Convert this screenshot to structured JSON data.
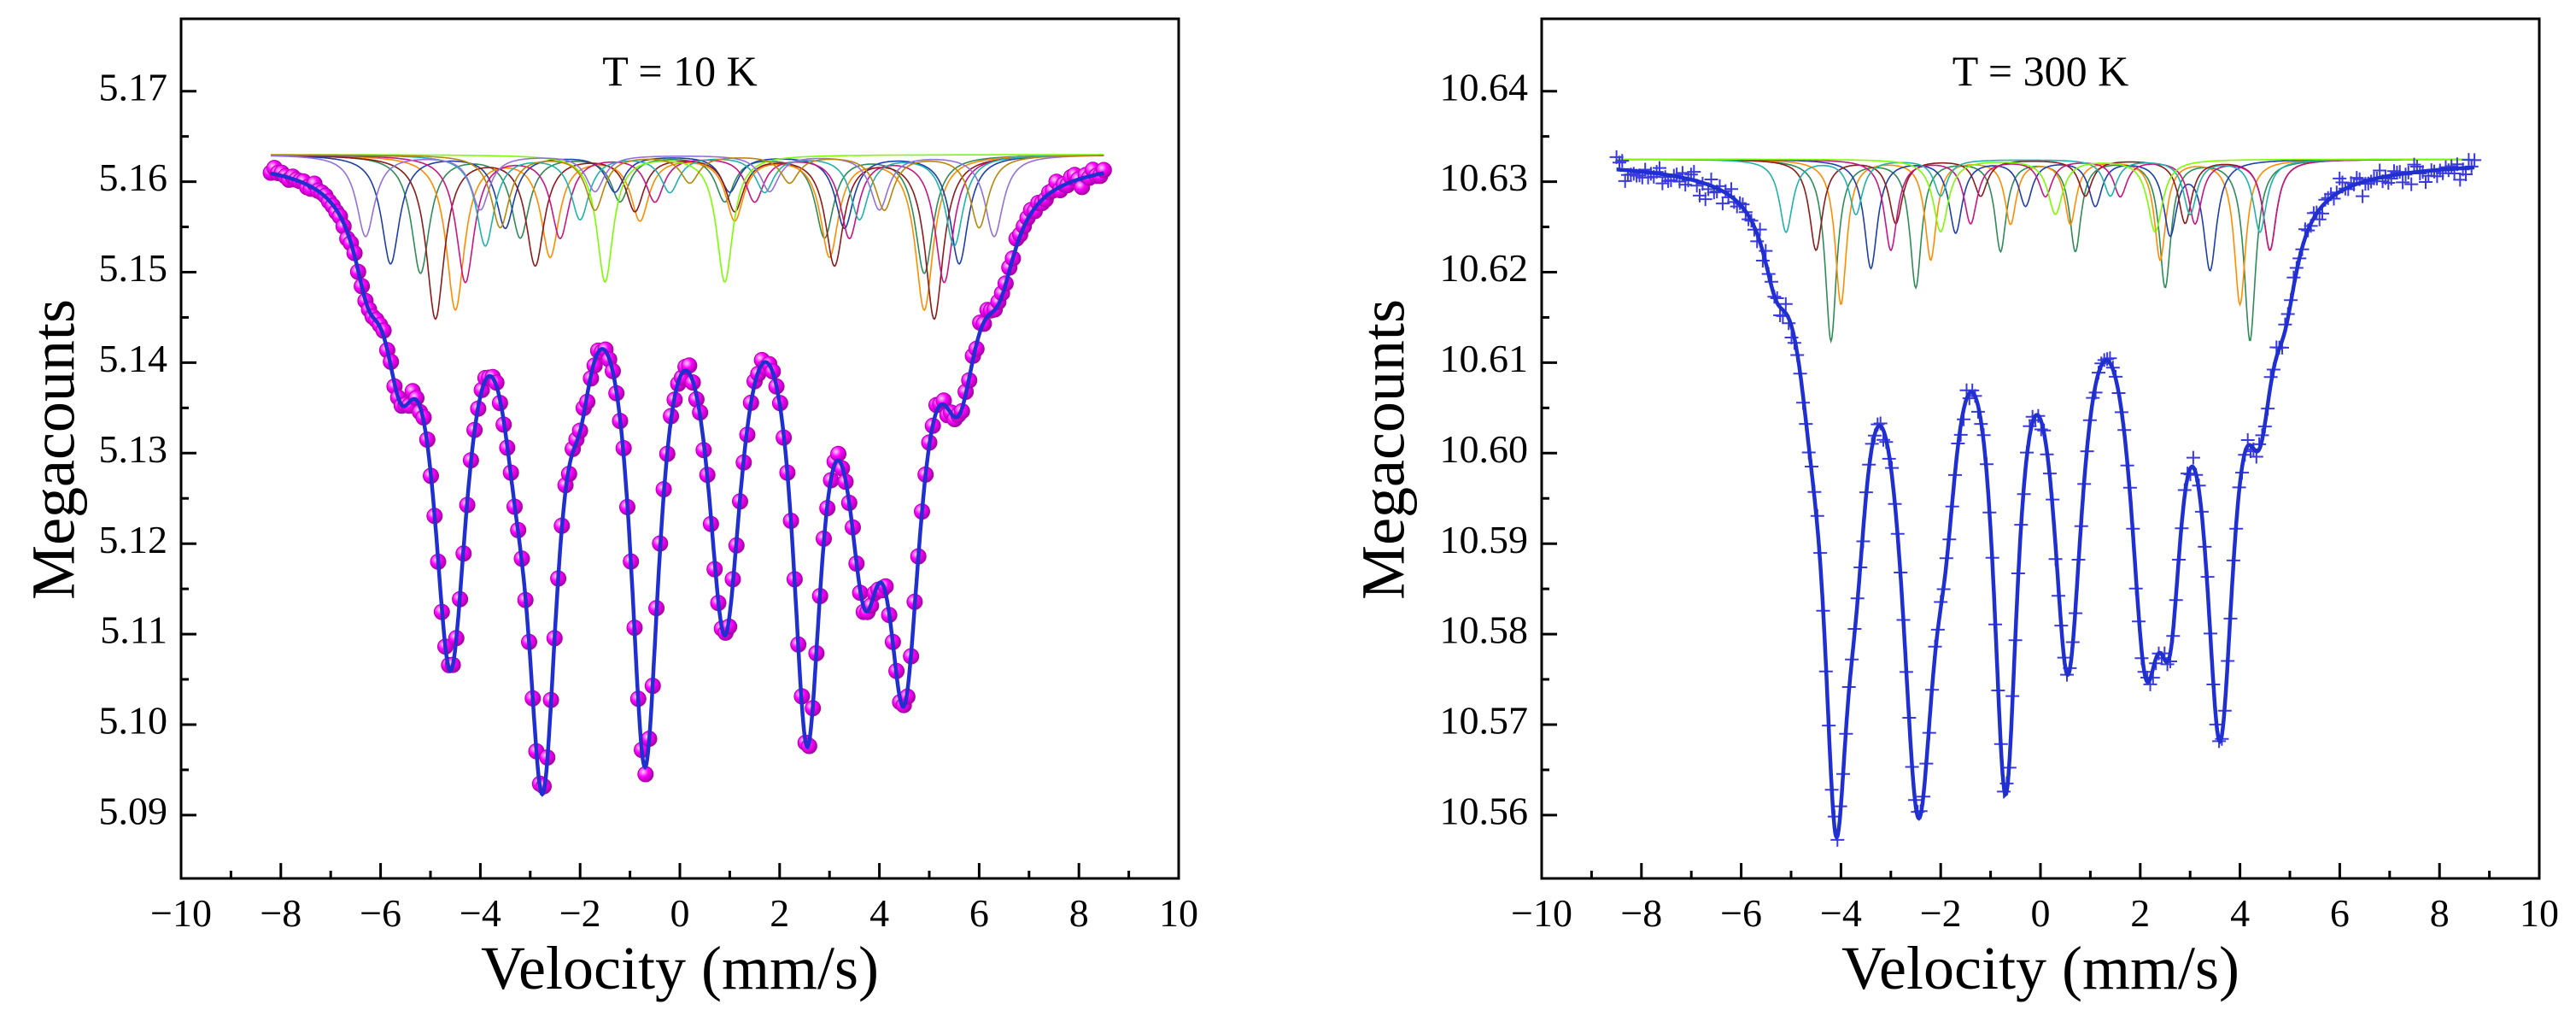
{
  "colors": {
    "fit_line": "#1f2fd0",
    "marker_10K": "#ff00ff",
    "marker_300K": "#3a3ae0",
    "subspectra": [
      "#2e8b57",
      "#ff8c00",
      "#1e3ea8",
      "#8b1a1a",
      "#c71585",
      "#20b2aa",
      "#7cfc00",
      "#9370db",
      "#b8860b",
      "#4682b4"
    ]
  },
  "chart_data": [
    {
      "type": "scatter",
      "title": "T = 10 K",
      "xlabel": "Velocity (mm/s)",
      "ylabel": "Megacounts",
      "xlim": [
        -10,
        10
      ],
      "ylim": [
        5.083,
        5.178
      ],
      "xticks": [
        -10,
        -8,
        -6,
        -4,
        -2,
        0,
        2,
        4,
        6,
        8,
        10
      ],
      "xtick_labels": [
        "−10",
        "−8",
        "−6",
        "−4",
        "−2",
        "0",
        "2",
        "4",
        "6",
        "8",
        "10"
      ],
      "yticks": [
        5.09,
        5.1,
        5.11,
        5.12,
        5.13,
        5.14,
        5.15,
        5.16,
        5.17
      ],
      "ytick_labels": [
        "5.09",
        "5.10",
        "5.11",
        "5.12",
        "5.13",
        "5.14",
        "5.15",
        "5.16",
        "5.17"
      ],
      "marker": "sphere",
      "baseline": 5.163,
      "x_range": [
        -8.2,
        8.5
      ],
      "dips": [
        {
          "x": -6.25,
          "depth": 0.008,
          "width": 0.35
        },
        {
          "x": -5.6,
          "depth": 0.016,
          "width": 0.4
        },
        {
          "x": -4.6,
          "depth": 0.05,
          "width": 0.42
        },
        {
          "x": -3.3,
          "depth": 0.012,
          "width": 0.35
        },
        {
          "x": -2.75,
          "depth": 0.06,
          "width": 0.38
        },
        {
          "x": -2.0,
          "depth": 0.01,
          "width": 0.3
        },
        {
          "x": -0.7,
          "depth": 0.06,
          "width": 0.36
        },
        {
          "x": 0.9,
          "depth": 0.045,
          "width": 0.42
        },
        {
          "x": 2.55,
          "depth": 0.055,
          "width": 0.36
        },
        {
          "x": 3.7,
          "depth": 0.032,
          "width": 0.42
        },
        {
          "x": 4.5,
          "depth": 0.048,
          "width": 0.42
        },
        {
          "x": 5.6,
          "depth": 0.018,
          "width": 0.45
        },
        {
          "x": 6.4,
          "depth": 0.008,
          "width": 0.4
        }
      ],
      "subspectra": [
        {
          "lines": [
            -5.2,
            -3.2,
            -1.2,
            0.9,
            2.9,
            4.9
          ],
          "depths": [
            0.013,
            0.009,
            0.005,
            0.005,
            0.009,
            0.013
          ],
          "width": 0.22
        },
        {
          "lines": [
            -4.5,
            -2.6,
            -0.8,
            1.1,
            3.0,
            4.9
          ],
          "depths": [
            0.017,
            0.011,
            0.007,
            0.007,
            0.011,
            0.017
          ],
          "width": 0.22
        },
        {
          "lines": [
            -5.8,
            -3.5,
            -1.3,
            1.0,
            3.3,
            5.6
          ],
          "depths": [
            0.012,
            0.008,
            0.004,
            0.004,
            0.008,
            0.012
          ],
          "width": 0.22
        },
        {
          "lines": [
            -4.9,
            -2.9,
            -0.9,
            1.1,
            3.1,
            5.1
          ],
          "depths": [
            0.018,
            0.012,
            0.006,
            0.006,
            0.012,
            0.018
          ],
          "width": 0.22
        },
        {
          "lines": [
            -4.3,
            -2.4,
            -0.5,
            1.5,
            3.4,
            5.3
          ],
          "depths": [
            0.014,
            0.009,
            0.005,
            0.005,
            0.009,
            0.014
          ],
          "width": 0.22
        },
        {
          "lines": [
            -3.9,
            -2.0,
            -0.2,
            1.7,
            3.6,
            5.5
          ],
          "depths": [
            0.01,
            0.007,
            0.004,
            0.004,
            0.007,
            0.01
          ],
          "width": 0.22
        },
        {
          "lines": [
            -1.5,
            0.9
          ],
          "depths": [
            0.014,
            0.014
          ],
          "width": 0.2
        },
        {
          "lines": [
            -6.3,
            -4.0,
            -1.7,
            1.8,
            4.0,
            6.3
          ],
          "depths": [
            0.009,
            0.006,
            0.004,
            0.004,
            0.006,
            0.009
          ],
          "width": 0.22
        },
        {
          "lines": [
            -3.6,
            -1.7,
            0.2,
            2.2,
            4.1,
            6.0
          ],
          "depths": [
            0.008,
            0.006,
            0.003,
            0.003,
            0.006,
            0.008
          ],
          "width": 0.22
        }
      ]
    },
    {
      "type": "scatter",
      "title": "T = 300 K",
      "xlabel": "Velocity (mm/s)",
      "ylabel": "Megacounts",
      "xlim": [
        -10,
        10
      ],
      "ylim": [
        10.553,
        10.648
      ],
      "xticks": [
        -10,
        -8,
        -6,
        -4,
        -2,
        0,
        2,
        4,
        6,
        8,
        10
      ],
      "xtick_labels": [
        "−10",
        "−8",
        "−6",
        "−4",
        "−2",
        "0",
        "2",
        "4",
        "6",
        "8",
        "10"
      ],
      "yticks": [
        10.56,
        10.57,
        10.58,
        10.59,
        10.6,
        10.61,
        10.62,
        10.63,
        10.64
      ],
      "ytick_labels": [
        "10.56",
        "10.57",
        "10.58",
        "10.59",
        "10.60",
        "10.61",
        "10.62",
        "10.63",
        "10.64"
      ],
      "marker": "plus",
      "baseline": 10.6325,
      "x_range": [
        -8.5,
        8.7
      ],
      "dips": [
        {
          "x": -5.3,
          "depth": 0.007,
          "width": 0.32
        },
        {
          "x": -4.6,
          "depth": 0.012,
          "width": 0.35
        },
        {
          "x": -4.1,
          "depth": 0.058,
          "width": 0.3
        },
        {
          "x": -3.7,
          "depth": 0.02,
          "width": 0.3
        },
        {
          "x": -2.45,
          "depth": 0.063,
          "width": 0.42
        },
        {
          "x": -1.9,
          "depth": 0.015,
          "width": 0.3
        },
        {
          "x": -0.7,
          "depth": 0.06,
          "width": 0.3
        },
        {
          "x": 0.55,
          "depth": 0.048,
          "width": 0.36
        },
        {
          "x": 2.1,
          "depth": 0.042,
          "width": 0.38
        },
        {
          "x": 2.6,
          "depth": 0.03,
          "width": 0.3
        },
        {
          "x": 3.6,
          "depth": 0.055,
          "width": 0.35
        },
        {
          "x": 4.4,
          "depth": 0.018,
          "width": 0.32
        },
        {
          "x": 4.9,
          "depth": 0.008,
          "width": 0.3
        }
      ],
      "subspectra": [
        {
          "lines": [
            -4.2,
            -2.5,
            -0.8,
            0.7,
            2.5,
            4.2
          ],
          "depths": [
            0.02,
            0.014,
            0.01,
            0.01,
            0.014,
            0.02
          ],
          "width": 0.14
        },
        {
          "lines": [
            -4.0,
            -2.2,
            -0.6,
            0.6,
            2.4,
            4.0
          ],
          "depths": [
            0.016,
            0.011,
            0.007,
            0.007,
            0.011,
            0.016
          ],
          "width": 0.14
        },
        {
          "lines": [
            -3.4,
            -1.7,
            -0.3,
            1.1,
            2.6,
            3.4
          ],
          "depths": [
            0.012,
            0.008,
            0.005,
            0.005,
            0.008,
            0.012
          ],
          "width": 0.16
        },
        {
          "lines": [
            -4.5,
            -2.9,
            -1.2,
            0.9,
            2.9,
            4.6
          ],
          "depths": [
            0.01,
            0.007,
            0.004,
            0.004,
            0.007,
            0.01
          ],
          "width": 0.16
        },
        {
          "lines": [
            -3.0,
            -1.4,
            0.1,
            1.6,
            3.1,
            4.6
          ],
          "depths": [
            0.01,
            0.007,
            0.004,
            0.004,
            0.007,
            0.01
          ],
          "width": 0.16
        },
        {
          "lines": [
            -5.1,
            -3.7,
            -2.0,
            1.4,
            3.0,
            4.4
          ],
          "depths": [
            0.008,
            0.006,
            0.004,
            0.004,
            0.006,
            0.008
          ],
          "width": 0.16
        },
        {
          "lines": [
            -2.0,
            0.3,
            2.3
          ],
          "depths": [
            0.008,
            0.006,
            0.008
          ],
          "width": 0.18
        }
      ]
    }
  ]
}
